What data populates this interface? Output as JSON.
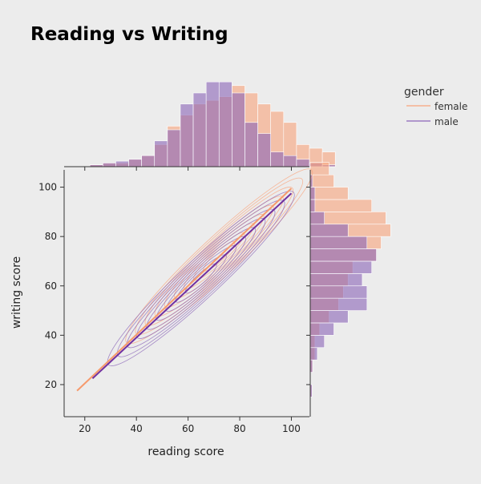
{
  "chart_data": {
    "type": "scatter",
    "title": "Reading vs Writing",
    "xlabel": "reading score",
    "ylabel": "writing score",
    "xlim": [
      12,
      107
    ],
    "ylim": [
      7,
      107
    ],
    "x_ticks": [
      20,
      40,
      60,
      80,
      100
    ],
    "y_ticks": [
      20,
      40,
      60,
      80,
      100
    ],
    "legend": {
      "title": "gender",
      "placement": "top-right",
      "entries": [
        {
          "name": "female",
          "color": "#f9a47c"
        },
        {
          "name": "male",
          "color": "#8a64b8"
        }
      ]
    },
    "series": [
      {
        "name": "female",
        "color": "#f9a47c",
        "line_color": "#f69a6c",
        "regression_line": [
          [
            17,
            17.5
          ],
          [
            100,
            99.5
          ]
        ],
        "kde_center": [
          72,
          72
        ],
        "reading_hist": {
          "bin_start": 17,
          "bin_width": 5,
          "counts": [
            0,
            0.5,
            1,
            1,
            2,
            3,
            6,
            11,
            14,
            17,
            18,
            19,
            22,
            20,
            17,
            15,
            12,
            6,
            5,
            4
          ]
        },
        "writing_hist": {
          "bin_start": 15,
          "bin_width": 5,
          "counts": [
            0.3,
            0,
            0.5,
            1,
            1,
            2,
            4,
            6,
            7,
            8,
            9,
            14,
            15,
            17,
            16,
            13,
            8,
            5,
            4
          ]
        }
      },
      {
        "name": "male",
        "color": "#8a64b8",
        "line_color": "#7030a0",
        "regression_line": [
          [
            23,
            22.5
          ],
          [
            100,
            97.5
          ]
        ],
        "kde_center": [
          65,
          63
        ],
        "reading_hist": {
          "bin_start": 17,
          "bin_width": 5,
          "counts": [
            0,
            0.5,
            1,
            1.5,
            2,
            3,
            7,
            10,
            17,
            20,
            23,
            23,
            20,
            12,
            9,
            4,
            3,
            2,
            1,
            0.5
          ]
        },
        "writing_hist": {
          "bin_start": 15,
          "bin_width": 5,
          "counts": [
            0.4,
            0,
            0.5,
            1.5,
            3,
            5,
            8,
            12,
            12,
            11,
            13,
            14,
            12,
            8,
            3,
            1,
            1,
            0.5,
            0
          ]
        }
      }
    ]
  }
}
